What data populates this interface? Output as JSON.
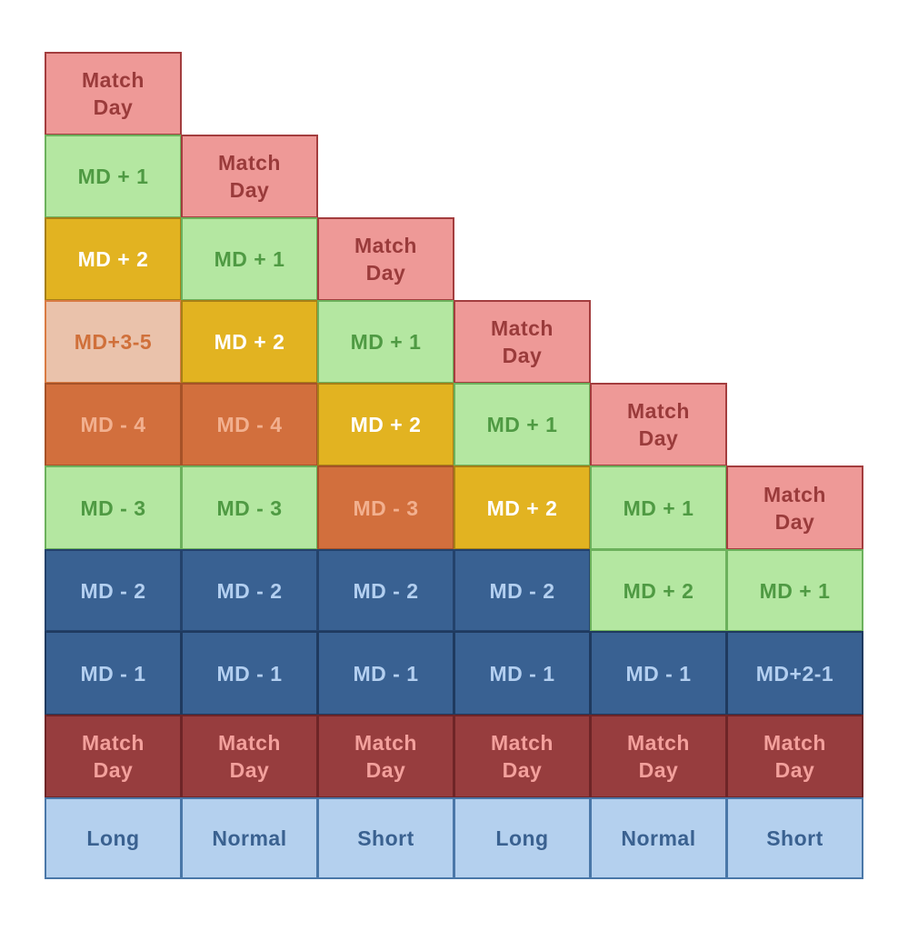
{
  "styles": {
    "match_day_light": {
      "fill": "#ee9997",
      "text": "#9a3b3b",
      "border": "#a33d3e"
    },
    "md_plus_1": {
      "fill": "#b4e7a1",
      "text": "#4f9a43",
      "border": "#6cb15c"
    },
    "md_plus_2": {
      "fill": "#e2b321",
      "text": "#ffffff",
      "border": "#a78017"
    },
    "md_plus_3_5": {
      "fill": "#eac2ab",
      "text": "#d0703a",
      "border": "#d97b43"
    },
    "md_minus_4": {
      "fill": "#d26f3d",
      "text": "#f2b08f",
      "border": "#a65228"
    },
    "md_minus_3": {
      "fill": "#b4e7a1",
      "text": "#4f9a43",
      "border": "#6cb15c"
    },
    "md_minus_3_orange": {
      "fill": "#d26f3d",
      "text": "#f2b08f",
      "border": "#a65228"
    },
    "md_minus_2": {
      "fill": "#396192",
      "text": "#b3cff0",
      "border": "#24426b"
    },
    "md_minus_1": {
      "fill": "#396192",
      "text": "#b3cff0",
      "border": "#1f3a5f"
    },
    "match_day_dark": {
      "fill": "#973d3e",
      "text": "#f3a09c",
      "border": "#6e2527"
    },
    "label": {
      "fill": "#b4d0ee",
      "text": "#3a6190",
      "border": "#4a77a8"
    }
  },
  "cells": [
    {
      "col": 0,
      "row": 0,
      "text": "Match\nDay",
      "style": "match_day_light"
    },
    {
      "col": 0,
      "row": 1,
      "text": "MD + 1",
      "style": "md_plus_1"
    },
    {
      "col": 0,
      "row": 2,
      "text": "MD + 2",
      "style": "md_plus_2"
    },
    {
      "col": 0,
      "row": 3,
      "text": "MD+3-5",
      "style": "md_plus_3_5"
    },
    {
      "col": 0,
      "row": 4,
      "text": "MD - 4",
      "style": "md_minus_4"
    },
    {
      "col": 0,
      "row": 5,
      "text": "MD - 3",
      "style": "md_minus_3"
    },
    {
      "col": 0,
      "row": 6,
      "text": "MD - 2",
      "style": "md_minus_2"
    },
    {
      "col": 0,
      "row": 7,
      "text": "MD - 1",
      "style": "md_minus_1"
    },
    {
      "col": 0,
      "row": 8,
      "text": "Match\nDay",
      "style": "match_day_dark"
    },
    {
      "col": 0,
      "row": 9,
      "text": "Long",
      "style": "label"
    },
    {
      "col": 1,
      "row": 1,
      "text": "Match\nDay",
      "style": "match_day_light"
    },
    {
      "col": 1,
      "row": 2,
      "text": "MD + 1",
      "style": "md_plus_1"
    },
    {
      "col": 1,
      "row": 3,
      "text": "MD + 2",
      "style": "md_plus_2"
    },
    {
      "col": 1,
      "row": 4,
      "text": "MD - 4",
      "style": "md_minus_4"
    },
    {
      "col": 1,
      "row": 5,
      "text": "MD - 3",
      "style": "md_minus_3"
    },
    {
      "col": 1,
      "row": 6,
      "text": "MD - 2",
      "style": "md_minus_2"
    },
    {
      "col": 1,
      "row": 7,
      "text": "MD - 1",
      "style": "md_minus_1"
    },
    {
      "col": 1,
      "row": 8,
      "text": "Match\nDay",
      "style": "match_day_dark"
    },
    {
      "col": 1,
      "row": 9,
      "text": "Normal",
      "style": "label"
    },
    {
      "col": 2,
      "row": 2,
      "text": "Match\nDay",
      "style": "match_day_light"
    },
    {
      "col": 2,
      "row": 3,
      "text": "MD + 1",
      "style": "md_plus_1"
    },
    {
      "col": 2,
      "row": 4,
      "text": "MD + 2",
      "style": "md_plus_2"
    },
    {
      "col": 2,
      "row": 5,
      "text": "MD - 3",
      "style": "md_minus_3_orange"
    },
    {
      "col": 2,
      "row": 6,
      "text": "MD - 2",
      "style": "md_minus_2"
    },
    {
      "col": 2,
      "row": 7,
      "text": "MD - 1",
      "style": "md_minus_1"
    },
    {
      "col": 2,
      "row": 8,
      "text": "Match\nDay",
      "style": "match_day_dark"
    },
    {
      "col": 2,
      "row": 9,
      "text": "Short",
      "style": "label"
    },
    {
      "col": 3,
      "row": 3,
      "text": "Match\nDay",
      "style": "match_day_light"
    },
    {
      "col": 3,
      "row": 4,
      "text": "MD + 1",
      "style": "md_plus_1"
    },
    {
      "col": 3,
      "row": 5,
      "text": "MD + 2",
      "style": "md_plus_2"
    },
    {
      "col": 3,
      "row": 6,
      "text": "MD - 2",
      "style": "md_minus_2"
    },
    {
      "col": 3,
      "row": 7,
      "text": "MD - 1",
      "style": "md_minus_1"
    },
    {
      "col": 3,
      "row": 8,
      "text": "Match\nDay",
      "style": "match_day_dark"
    },
    {
      "col": 3,
      "row": 9,
      "text": "Long",
      "style": "label"
    },
    {
      "col": 4,
      "row": 4,
      "text": "Match\nDay",
      "style": "match_day_light"
    },
    {
      "col": 4,
      "row": 5,
      "text": "MD + 1",
      "style": "md_plus_1"
    },
    {
      "col": 4,
      "row": 6,
      "text": "MD + 2",
      "style": "md_plus_1"
    },
    {
      "col": 4,
      "row": 7,
      "text": "MD - 1",
      "style": "md_minus_1"
    },
    {
      "col": 4,
      "row": 8,
      "text": "Match\nDay",
      "style": "match_day_dark"
    },
    {
      "col": 4,
      "row": 9,
      "text": "Normal",
      "style": "label"
    },
    {
      "col": 5,
      "row": 5,
      "text": "Match\nDay",
      "style": "match_day_light"
    },
    {
      "col": 5,
      "row": 6,
      "text": "MD + 1",
      "style": "md_plus_1"
    },
    {
      "col": 5,
      "row": 7,
      "text": "MD+2-1",
      "style": "md_minus_1"
    },
    {
      "col": 5,
      "row": 8,
      "text": "Match\nDay",
      "style": "match_day_dark"
    },
    {
      "col": 5,
      "row": 9,
      "text": "Short",
      "style": "label"
    }
  ]
}
